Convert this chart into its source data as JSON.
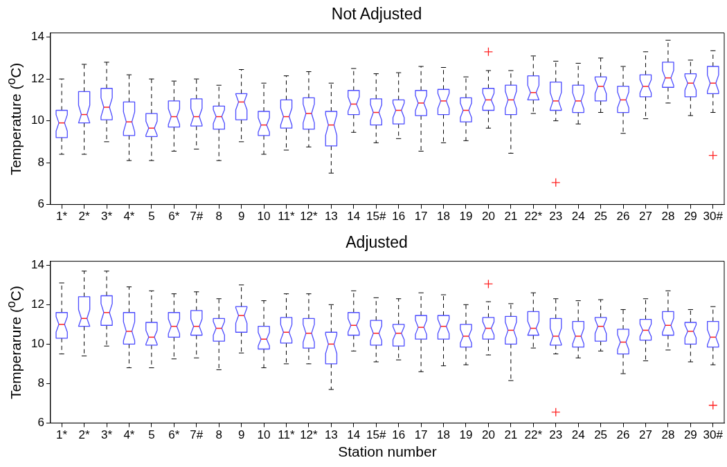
{
  "chart_data": [
    {
      "type": "box",
      "title": "Not Adjusted",
      "ylabel": "Temperature ($^{o}$C)",
      "categories": [
        "1*",
        "2*",
        "3*",
        "4*",
        "5",
        "6*",
        "7#",
        "8",
        "9",
        "10",
        "11*",
        "12*",
        "13",
        "14",
        "15#",
        "16",
        "17",
        "18",
        "19",
        "20",
        "21",
        "22*",
        "23",
        "24",
        "25",
        "26",
        "27",
        "28",
        "29",
        "30#"
      ],
      "ylim": [
        6,
        14.2
      ],
      "yticks": [
        6,
        8,
        10,
        12,
        14
      ],
      "grid": false,
      "series": [
        {
          "color": "#4a4aff",
          "boxes": [
            {
              "low": 8.4,
              "q1": 9.2,
              "median": 9.9,
              "q3": 10.5,
              "high": 12.0
            },
            {
              "low": 8.4,
              "q1": 9.9,
              "median": 10.3,
              "q3": 11.4,
              "high": 12.7
            },
            {
              "low": 9.0,
              "q1": 10.05,
              "median": 10.65,
              "q3": 11.55,
              "high": 12.8
            },
            {
              "low": 8.1,
              "q1": 9.3,
              "median": 9.95,
              "q3": 10.9,
              "high": 12.2
            },
            {
              "low": 8.1,
              "q1": 9.25,
              "median": 9.65,
              "q3": 10.35,
              "high": 12.0
            },
            {
              "low": 8.55,
              "q1": 9.7,
              "median": 10.2,
              "q3": 10.95,
              "high": 11.9
            },
            {
              "low": 8.65,
              "q1": 9.75,
              "median": 10.2,
              "q3": 11.05,
              "high": 12.0
            },
            {
              "low": 8.1,
              "q1": 9.6,
              "median": 10.2,
              "q3": 10.7,
              "high": 11.7
            },
            {
              "low": 9.0,
              "q1": 10.05,
              "median": 10.9,
              "q3": 11.3,
              "high": 12.45
            },
            {
              "low": 8.4,
              "q1": 9.3,
              "median": 9.8,
              "q3": 10.45,
              "high": 11.8
            },
            {
              "low": 8.6,
              "q1": 9.65,
              "median": 10.2,
              "q3": 11.0,
              "high": 12.15
            },
            {
              "low": 8.75,
              "q1": 9.6,
              "median": 10.35,
              "q3": 11.1,
              "high": 12.35
            },
            {
              "low": 7.5,
              "q1": 8.8,
              "median": 9.8,
              "q3": 10.45,
              "high": 11.8
            },
            {
              "low": 9.45,
              "q1": 10.3,
              "median": 10.8,
              "q3": 11.45,
              "high": 12.5
            },
            {
              "low": 8.95,
              "q1": 9.8,
              "median": 10.4,
              "q3": 11.05,
              "high": 12.25
            },
            {
              "low": 9.15,
              "q1": 9.85,
              "median": 10.5,
              "q3": 11.0,
              "high": 12.3
            },
            {
              "low": 8.55,
              "q1": 10.25,
              "median": 10.85,
              "q3": 11.45,
              "high": 12.6
            },
            {
              "low": 8.95,
              "q1": 10.3,
              "median": 10.95,
              "q3": 11.5,
              "high": 12.55
            },
            {
              "low": 9.05,
              "q1": 9.95,
              "median": 10.5,
              "q3": 11.1,
              "high": 12.1
            },
            {
              "low": 9.65,
              "q1": 10.5,
              "median": 11.0,
              "q3": 11.55,
              "high": 12.4,
              "outliers": [
                13.3
              ]
            },
            {
              "low": 8.45,
              "q1": 10.3,
              "median": 11.0,
              "q3": 11.7,
              "high": 12.4
            },
            {
              "low": 10.35,
              "q1": 11.0,
              "median": 11.35,
              "q3": 12.15,
              "high": 13.1
            },
            {
              "low": 10.0,
              "q1": 10.5,
              "median": 10.95,
              "q3": 11.85,
              "high": 12.85,
              "outliers": [
                7.05
              ]
            },
            {
              "low": 9.85,
              "q1": 10.4,
              "median": 10.95,
              "q3": 11.7,
              "high": 12.75
            },
            {
              "low": 10.4,
              "q1": 10.95,
              "median": 11.65,
              "q3": 12.1,
              "high": 13.0
            },
            {
              "low": 9.4,
              "q1": 10.4,
              "median": 11.0,
              "q3": 11.65,
              "high": 12.6
            },
            {
              "low": 10.1,
              "q1": 11.15,
              "median": 11.65,
              "q3": 12.2,
              "high": 13.3
            },
            {
              "low": 10.85,
              "q1": 11.6,
              "median": 12.05,
              "q3": 12.8,
              "high": 13.85
            },
            {
              "low": 10.25,
              "q1": 11.15,
              "median": 11.8,
              "q3": 12.25,
              "high": 12.9
            },
            {
              "low": 10.4,
              "q1": 11.3,
              "median": 11.8,
              "q3": 12.6,
              "high": 13.35,
              "outliers": [
                8.35
              ]
            }
          ]
        }
      ]
    },
    {
      "type": "box",
      "title": "Adjusted",
      "ylabel": "Temperarure ($^{o}$C)",
      "xlabel": "Station number",
      "categories": [
        "1*",
        "2*",
        "3*",
        "4*",
        "5",
        "6*",
        "7#",
        "8",
        "9",
        "10",
        "11*",
        "12*",
        "13",
        "14",
        "15#",
        "16",
        "17",
        "18",
        "19",
        "20",
        "21",
        "22*",
        "23",
        "24",
        "25",
        "26",
        "27",
        "28",
        "29",
        "30#"
      ],
      "ylim": [
        6,
        14.2
      ],
      "yticks": [
        6,
        8,
        10,
        12,
        14
      ],
      "grid": false,
      "series": [
        {
          "color": "#4a4aff",
          "boxes": [
            {
              "low": 9.5,
              "q1": 10.3,
              "median": 11.0,
              "q3": 11.6,
              "high": 13.1
            },
            {
              "low": 9.4,
              "q1": 10.9,
              "median": 11.3,
              "q3": 12.4,
              "high": 13.7
            },
            {
              "low": 9.9,
              "q1": 10.95,
              "median": 11.6,
              "q3": 12.45,
              "high": 13.7
            },
            {
              "low": 8.8,
              "q1": 10.0,
              "median": 10.65,
              "q3": 11.6,
              "high": 12.9
            },
            {
              "low": 8.8,
              "q1": 9.95,
              "median": 10.35,
              "q3": 11.1,
              "high": 12.7
            },
            {
              "low": 9.25,
              "q1": 10.35,
              "median": 10.9,
              "q3": 11.6,
              "high": 12.55
            },
            {
              "low": 9.3,
              "q1": 10.45,
              "median": 10.9,
              "q3": 11.7,
              "high": 12.65
            },
            {
              "low": 8.7,
              "q1": 10.15,
              "median": 10.8,
              "q3": 11.3,
              "high": 12.3
            },
            {
              "low": 9.55,
              "q1": 10.6,
              "median": 11.45,
              "q3": 11.9,
              "high": 13.0
            },
            {
              "low": 8.8,
              "q1": 9.75,
              "median": 10.25,
              "q3": 10.9,
              "high": 12.2
            },
            {
              "low": 9.0,
              "q1": 10.05,
              "median": 10.6,
              "q3": 11.35,
              "high": 12.55
            },
            {
              "low": 9.0,
              "q1": 9.8,
              "median": 10.55,
              "q3": 11.3,
              "high": 12.55
            },
            {
              "low": 7.7,
              "q1": 9.0,
              "median": 10.0,
              "q3": 10.6,
              "high": 12.0
            },
            {
              "low": 9.65,
              "q1": 10.45,
              "median": 10.95,
              "q3": 11.6,
              "high": 12.7
            },
            {
              "low": 9.1,
              "q1": 9.95,
              "median": 10.55,
              "q3": 11.2,
              "high": 12.35
            },
            {
              "low": 9.2,
              "q1": 9.9,
              "median": 10.55,
              "q3": 11.0,
              "high": 12.3
            },
            {
              "low": 8.6,
              "q1": 10.25,
              "median": 10.85,
              "q3": 11.45,
              "high": 12.6
            },
            {
              "low": 8.9,
              "q1": 10.25,
              "median": 10.9,
              "q3": 11.45,
              "high": 12.5
            },
            {
              "low": 8.95,
              "q1": 9.85,
              "median": 10.4,
              "q3": 11.0,
              "high": 12.0
            },
            {
              "low": 9.45,
              "q1": 10.25,
              "median": 10.8,
              "q3": 11.35,
              "high": 12.15,
              "outliers": [
                13.05
              ]
            },
            {
              "low": 8.15,
              "q1": 10.0,
              "median": 10.7,
              "q3": 11.4,
              "high": 12.05
            },
            {
              "low": 9.8,
              "q1": 10.45,
              "median": 10.8,
              "q3": 11.65,
              "high": 12.6
            },
            {
              "low": 9.5,
              "q1": 9.95,
              "median": 10.4,
              "q3": 11.3,
              "high": 12.3,
              "outliers": [
                6.55
              ]
            },
            {
              "low": 9.3,
              "q1": 9.85,
              "median": 10.4,
              "q3": 11.15,
              "high": 12.2
            },
            {
              "low": 9.65,
              "q1": 10.15,
              "median": 10.9,
              "q3": 11.35,
              "high": 12.25
            },
            {
              "low": 8.5,
              "q1": 9.5,
              "median": 10.1,
              "q3": 10.75,
              "high": 11.75
            },
            {
              "low": 9.15,
              "q1": 10.2,
              "median": 10.7,
              "q3": 11.25,
              "high": 12.3
            },
            {
              "low": 9.7,
              "q1": 10.45,
              "median": 10.95,
              "q3": 11.65,
              "high": 12.7
            },
            {
              "low": 9.1,
              "q1": 10.0,
              "median": 10.65,
              "q3": 11.1,
              "high": 11.75
            },
            {
              "low": 8.95,
              "q1": 9.85,
              "median": 10.35,
              "q3": 11.15,
              "high": 11.9,
              "outliers": [
                6.9
              ]
            }
          ]
        }
      ]
    }
  ]
}
